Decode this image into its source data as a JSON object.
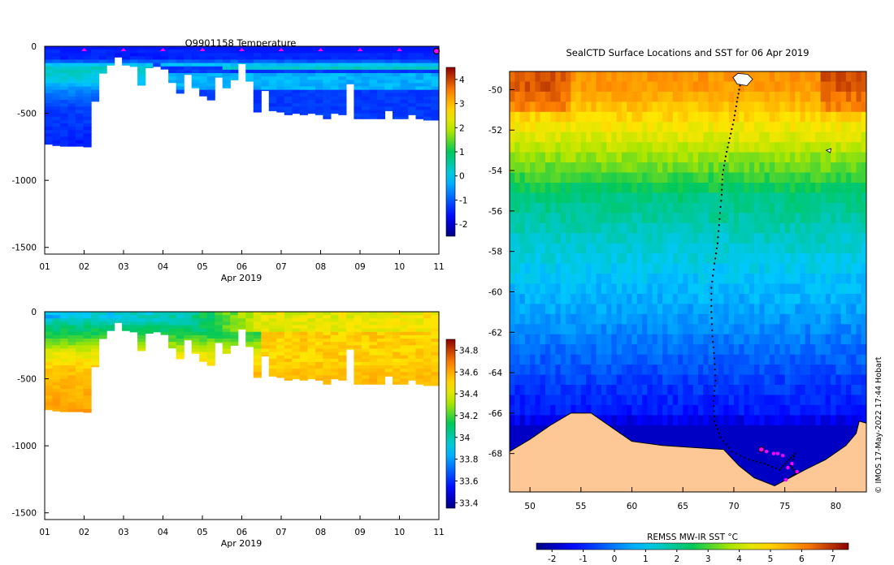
{
  "chart_data": [
    {
      "type": "heatmap",
      "title": "Q9901158  Temperature",
      "xlabel": "Apr 2019",
      "ylabel": "",
      "x_ticks": [
        "01",
        "02",
        "03",
        "04",
        "05",
        "06",
        "07",
        "08",
        "09",
        "10",
        "11"
      ],
      "xlim": [
        1,
        11
      ],
      "ylim": [
        -1550,
        0
      ],
      "y_ticks": [
        0,
        -500,
        -1000,
        -1500
      ],
      "y_tick_labels": [
        "0",
        "-500",
        "-1000",
        "-1500"
      ],
      "colorbar": {
        "range": [
          -2.5,
          4.5
        ],
        "ticks": [
          4,
          3,
          2,
          1,
          0,
          -1,
          -2
        ],
        "tick_labels": [
          "4",
          "3",
          "2",
          "1",
          "0",
          "-1",
          "-2"
        ]
      },
      "profile_markers_day": [
        2,
        3,
        4,
        5,
        6,
        7,
        8,
        9,
        10
      ],
      "current_marker_day": 11,
      "profile_depths": [
        {
          "day": 1.0,
          "depth": 730
        },
        {
          "day": 1.2,
          "depth": 740
        },
        {
          "day": 1.4,
          "depth": 745
        },
        {
          "day": 1.6,
          "depth": 745
        },
        {
          "day": 1.8,
          "depth": 745
        },
        {
          "day": 2.0,
          "depth": 750
        },
        {
          "day": 2.2,
          "depth": 410
        },
        {
          "day": 2.4,
          "depth": 200
        },
        {
          "day": 2.6,
          "depth": 140
        },
        {
          "day": 2.8,
          "depth": 80
        },
        {
          "day": 3.0,
          "depth": 140
        },
        {
          "day": 3.2,
          "depth": 150
        },
        {
          "day": 3.4,
          "depth": 290
        },
        {
          "day": 3.6,
          "depth": 160
        },
        {
          "day": 3.8,
          "depth": 150
        },
        {
          "day": 4.0,
          "depth": 170
        },
        {
          "day": 4.2,
          "depth": 270
        },
        {
          "day": 4.4,
          "depth": 350
        },
        {
          "day": 4.6,
          "depth": 210
        },
        {
          "day": 4.8,
          "depth": 310
        },
        {
          "day": 5.0,
          "depth": 370
        },
        {
          "day": 5.2,
          "depth": 400
        },
        {
          "day": 5.4,
          "depth": 230
        },
        {
          "day": 5.6,
          "depth": 310
        },
        {
          "day": 5.8,
          "depth": 250
        },
        {
          "day": 6.0,
          "depth": 130
        },
        {
          "day": 6.2,
          "depth": 260
        },
        {
          "day": 6.4,
          "depth": 490
        },
        {
          "day": 6.6,
          "depth": 330
        },
        {
          "day": 6.8,
          "depth": 480
        },
        {
          "day": 7.0,
          "depth": 490
        },
        {
          "day": 7.2,
          "depth": 510
        },
        {
          "day": 7.4,
          "depth": 500
        },
        {
          "day": 7.6,
          "depth": 510
        },
        {
          "day": 7.8,
          "depth": 500
        },
        {
          "day": 8.0,
          "depth": 510
        },
        {
          "day": 8.2,
          "depth": 540
        },
        {
          "day": 8.4,
          "depth": 500
        },
        {
          "day": 8.6,
          "depth": 510
        },
        {
          "day": 8.8,
          "depth": 280
        },
        {
          "day": 9.0,
          "depth": 540
        },
        {
          "day": 9.2,
          "depth": 540
        },
        {
          "day": 9.4,
          "depth": 540
        },
        {
          "day": 9.6,
          "depth": 540
        },
        {
          "day": 9.8,
          "depth": 480
        },
        {
          "day": 10.0,
          "depth": 540
        },
        {
          "day": 10.2,
          "depth": 540
        },
        {
          "day": 10.4,
          "depth": 510
        },
        {
          "day": 10.6,
          "depth": 540
        },
        {
          "day": 10.8,
          "depth": 550
        },
        {
          "day": 11.0,
          "depth": 550
        }
      ],
      "mixed_layer_depths": [
        {
          "day": 1.0,
          "depth": 90
        },
        {
          "day": 1.5,
          "depth": 110
        },
        {
          "day": 2.0,
          "depth": 120
        },
        {
          "day": 2.5,
          "depth": 70
        },
        {
          "day": 3.0,
          "depth": 60
        },
        {
          "day": 3.5,
          "depth": 60
        },
        {
          "day": 4.0,
          "depth": 80
        },
        {
          "day": 5.0,
          "depth": 90
        },
        {
          "day": 6.0,
          "depth": 110
        },
        {
          "day": 7.0,
          "depth": 110
        },
        {
          "day": 8.0,
          "depth": 110
        },
        {
          "day": 9.0,
          "depth": 120
        },
        {
          "day": 10.0,
          "depth": 120
        },
        {
          "day": 11.0,
          "depth": 120
        }
      ],
      "temperature_profile": [
        {
          "depth": 0,
          "value": -1.5
        },
        {
          "depth": 40,
          "value": -1.6
        },
        {
          "depth": 100,
          "value": -1.4
        },
        {
          "depth": 150,
          "value": 0.3
        },
        {
          "depth": 250,
          "value": 0.1
        },
        {
          "depth": 320,
          "value": -0.6
        },
        {
          "depth": 450,
          "value": -1.2
        },
        {
          "depth": 750,
          "value": -1.5
        }
      ]
    },
    {
      "type": "heatmap",
      "title": "",
      "xlabel": "Apr 2019",
      "ylabel": "",
      "x_ticks": [
        "01",
        "02",
        "03",
        "04",
        "05",
        "06",
        "07",
        "08",
        "09",
        "10",
        "11"
      ],
      "xlim": [
        1,
        11
      ],
      "ylim": [
        -1550,
        0
      ],
      "y_ticks": [
        0,
        -500,
        -1000,
        -1500
      ],
      "y_tick_labels": [
        "0",
        "-500",
        "-1000",
        "-1500"
      ],
      "colorbar": {
        "range": [
          33.35,
          34.9
        ],
        "ticks": [
          34.8,
          34.6,
          34.4,
          34.2,
          34,
          33.8,
          33.6,
          33.4
        ],
        "tick_labels": [
          "34.8",
          "34.6",
          "34.4",
          "34.2",
          "34",
          "33.8",
          "33.6",
          "33.4"
        ]
      },
      "surface_salinity": [
        {
          "day": 1.0,
          "value": 33.85
        },
        {
          "day": 4.5,
          "value": 34.0
        },
        {
          "day": 6.5,
          "value": 34.4
        },
        {
          "day": 11.0,
          "value": 34.45
        }
      ],
      "salinity_profile": [
        {
          "depth": 0,
          "value": 33.85
        },
        {
          "depth": 100,
          "value": 34.05
        },
        {
          "depth": 200,
          "value": 34.2
        },
        {
          "depth": 300,
          "value": 34.4
        },
        {
          "depth": 450,
          "value": 34.55
        },
        {
          "depth": 750,
          "value": 34.62
        }
      ]
    },
    {
      "type": "heatmap",
      "title": "SealCTD Surface Locations and SST for 06 Apr 2019",
      "xlabel": "",
      "ylabel": "",
      "x_ticks": [
        50,
        55,
        60,
        65,
        70,
        75,
        80
      ],
      "x_tick_labels": [
        "50",
        "55",
        "60",
        "65",
        "70",
        "75",
        "80"
      ],
      "xlim": [
        48,
        83
      ],
      "y_ticks": [
        -50,
        -52,
        -54,
        -56,
        -58,
        -60,
        -62,
        -64,
        -66,
        -68
      ],
      "y_tick_labels": [
        "-50",
        "-52",
        "-54",
        "-56",
        "-58",
        "-60",
        "-62",
        "-64",
        "-66",
        "-68"
      ],
      "ylim": [
        -69.9,
        -49.1
      ],
      "colorbar": {
        "label": "REMSS MW-IR SST °C",
        "range": [
          -2.5,
          7.5
        ],
        "ticks": [
          -2,
          -1,
          0,
          1,
          2,
          3,
          4,
          5,
          6,
          7
        ],
        "tick_labels": [
          "-2",
          "-1",
          "0",
          "1",
          "2",
          "3",
          "4",
          "5",
          "6",
          "7"
        ],
        "orientation": "horizontal"
      },
      "sst_by_latitude": [
        {
          "lat": -49.5,
          "sst": 5.8
        },
        {
          "lat": -51,
          "sst": 5.0
        },
        {
          "lat": -52.5,
          "sst": 4.0
        },
        {
          "lat": -53.5,
          "sst": 3.3
        },
        {
          "lat": -55,
          "sst": 2.2
        },
        {
          "lat": -57,
          "sst": 1.5
        },
        {
          "lat": -59,
          "sst": 0.9
        },
        {
          "lat": -61,
          "sst": 0.4
        },
        {
          "lat": -63,
          "sst": -0.3
        },
        {
          "lat": -64.5,
          "sst": -0.8
        },
        {
          "lat": -65.8,
          "sst": -1.2
        },
        {
          "lat": -66.4,
          "sst": -1.9
        }
      ],
      "coastline": [
        {
          "lon": 48.0,
          "lat": -67.9
        },
        {
          "lon": 50.0,
          "lat": -67.3
        },
        {
          "lon": 52.0,
          "lat": -66.6
        },
        {
          "lon": 54.0,
          "lat": -66.0
        },
        {
          "lon": 56.0,
          "lat": -66.0
        },
        {
          "lon": 58.0,
          "lat": -66.7
        },
        {
          "lon": 60.0,
          "lat": -67.4
        },
        {
          "lon": 63.0,
          "lat": -67.6
        },
        {
          "lon": 66.0,
          "lat": -67.7
        },
        {
          "lon": 69.0,
          "lat": -67.8
        },
        {
          "lon": 70.5,
          "lat": -68.6
        },
        {
          "lon": 72.0,
          "lat": -69.2
        },
        {
          "lon": 74.0,
          "lat": -69.6
        },
        {
          "lon": 75.5,
          "lat": -69.2
        },
        {
          "lon": 77.0,
          "lat": -68.8
        },
        {
          "lon": 79.0,
          "lat": -68.3
        },
        {
          "lon": 81.0,
          "lat": -67.6
        },
        {
          "lon": 82.0,
          "lat": -67.0
        },
        {
          "lon": 82.3,
          "lat": -66.4
        },
        {
          "lon": 83.0,
          "lat": -66.5
        }
      ],
      "islands": [
        {
          "name": "island-north",
          "lon": 70.8,
          "lat": -49.4
        },
        {
          "name": "island-small",
          "lon": 79.3,
          "lat": -53.0
        }
      ],
      "track": [
        {
          "lon": 70.6,
          "lat": -49.8
        },
        {
          "lon": 70.3,
          "lat": -50.6
        },
        {
          "lon": 70.0,
          "lat": -51.5
        },
        {
          "lon": 69.6,
          "lat": -52.4
        },
        {
          "lon": 69.2,
          "lat": -53.3
        },
        {
          "lon": 68.9,
          "lat": -54.2
        },
        {
          "lon": 68.8,
          "lat": -55.2
        },
        {
          "lon": 68.6,
          "lat": -56.4
        },
        {
          "lon": 68.4,
          "lat": -57.6
        },
        {
          "lon": 68.1,
          "lat": -58.6
        },
        {
          "lon": 67.8,
          "lat": -59.8
        },
        {
          "lon": 67.8,
          "lat": -61.0
        },
        {
          "lon": 67.9,
          "lat": -62.2
        },
        {
          "lon": 68.1,
          "lat": -63.3
        },
        {
          "lon": 68.2,
          "lat": -64.4
        },
        {
          "lon": 68.0,
          "lat": -65.4
        },
        {
          "lon": 68.1,
          "lat": -66.4
        },
        {
          "lon": 68.7,
          "lat": -67.2
        },
        {
          "lon": 69.8,
          "lat": -67.9
        },
        {
          "lon": 71.5,
          "lat": -68.3
        },
        {
          "lon": 73.0,
          "lat": -68.5
        },
        {
          "lon": 74.5,
          "lat": -68.8
        },
        {
          "lon": 75.2,
          "lat": -68.4
        },
        {
          "lon": 76.0,
          "lat": -68.0
        },
        {
          "lon": 75.6,
          "lat": -68.6
        },
        {
          "lon": 76.1,
          "lat": -69.0
        },
        {
          "lon": 75.4,
          "lat": -69.2
        }
      ],
      "surface_locations": [
        {
          "lon": 73.2,
          "lat": -67.9
        },
        {
          "lon": 73.9,
          "lat": -68.0
        },
        {
          "lon": 74.3,
          "lat": -68.0
        },
        {
          "lon": 74.8,
          "lat": -68.1
        },
        {
          "lon": 75.3,
          "lat": -68.7
        },
        {
          "lon": 75.7,
          "lat": -68.5
        },
        {
          "lon": 76.2,
          "lat": -68.9
        },
        {
          "lon": 75.1,
          "lat": -69.3
        }
      ],
      "current_location": {
        "lon": 72.7,
        "lat": -67.8
      }
    }
  ],
  "credit": "© IMOS 17-May-2022 17:44 Hobart"
}
